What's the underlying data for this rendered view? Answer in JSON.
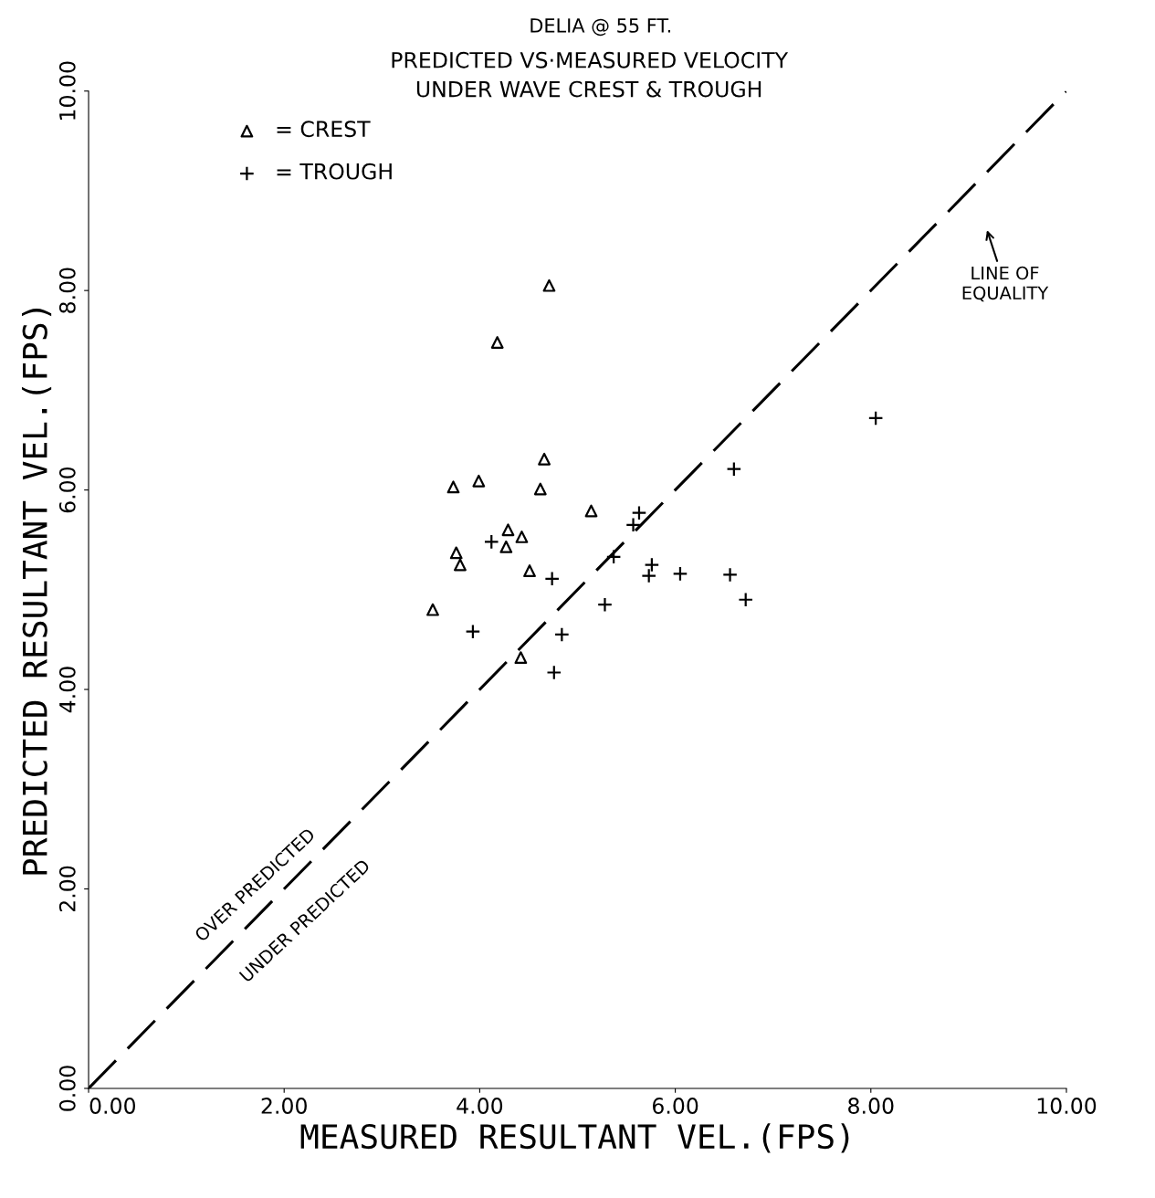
{
  "chart_data": {
    "type": "scatter",
    "title": "DELIA @ 55 FT.",
    "subtitle": "PREDICTED VS·MEASURED VELOCITY\nUNDER WAVE CREST & TROUGH",
    "xlabel": "MEASURED RESULTANT VEL.(FPS)",
    "ylabel": "PREDICTED RESULTANT VEL.(FPS)",
    "xlim": [
      0,
      10
    ],
    "ylim": [
      0,
      10
    ],
    "xticks": [
      {
        "value": 0,
        "label": "0.00"
      },
      {
        "value": 2,
        "label": "2.00"
      },
      {
        "value": 4,
        "label": "4.00"
      },
      {
        "value": 6,
        "label": "6.00"
      },
      {
        "value": 8,
        "label": "8.00"
      },
      {
        "value": 10,
        "label": "10.00"
      }
    ],
    "yticks": [
      {
        "value": 0,
        "label": "0.00"
      },
      {
        "value": 2,
        "label": "2.00"
      },
      {
        "value": 4,
        "label": "4.00"
      },
      {
        "value": 6,
        "label": "6.00"
      },
      {
        "value": 8,
        "label": "8.00"
      },
      {
        "value": 10,
        "label": "10.00"
      }
    ],
    "grid": false,
    "legend": "top left",
    "series": [
      {
        "name": "= CREST",
        "color": "#000000",
        "marker": "triangle",
        "x": [
          4.71,
          4.18,
          4.66,
          3.73,
          3.99,
          4.62,
          5.14,
          4.29,
          4.43,
          4.27,
          3.76,
          3.8,
          4.51,
          3.52,
          4.42
        ],
        "values": [
          8.05,
          7.48,
          6.31,
          6.03,
          6.09,
          6.01,
          5.79,
          5.6,
          5.53,
          5.43,
          5.37,
          5.25,
          5.19,
          4.8,
          4.32
        ]
      },
      {
        "name": "= TROUGH",
        "color": "#000000",
        "marker": "cross",
        "x": [
          4.12,
          4.74,
          3.93,
          5.37,
          5.28,
          4.84,
          4.76,
          5.63,
          5.57,
          5.76,
          5.73,
          6.05,
          6.56,
          6.72,
          6.6,
          8.05
        ],
        "values": [
          5.48,
          5.11,
          4.58,
          5.33,
          4.85,
          4.55,
          4.17,
          5.77,
          5.65,
          5.25,
          5.14,
          5.16,
          5.15,
          4.9,
          6.21,
          6.72
        ]
      },
      {
        "type": "line",
        "color": "#000000",
        "line_style": "dashed",
        "marker": "none",
        "x": [
          0,
          10
        ],
        "values": [
          0,
          10
        ]
      }
    ],
    "annotations": [
      "LINE OF\nEQUALITY",
      "OVER PREDICTED",
      "UNDER PREDICTED"
    ]
  }
}
